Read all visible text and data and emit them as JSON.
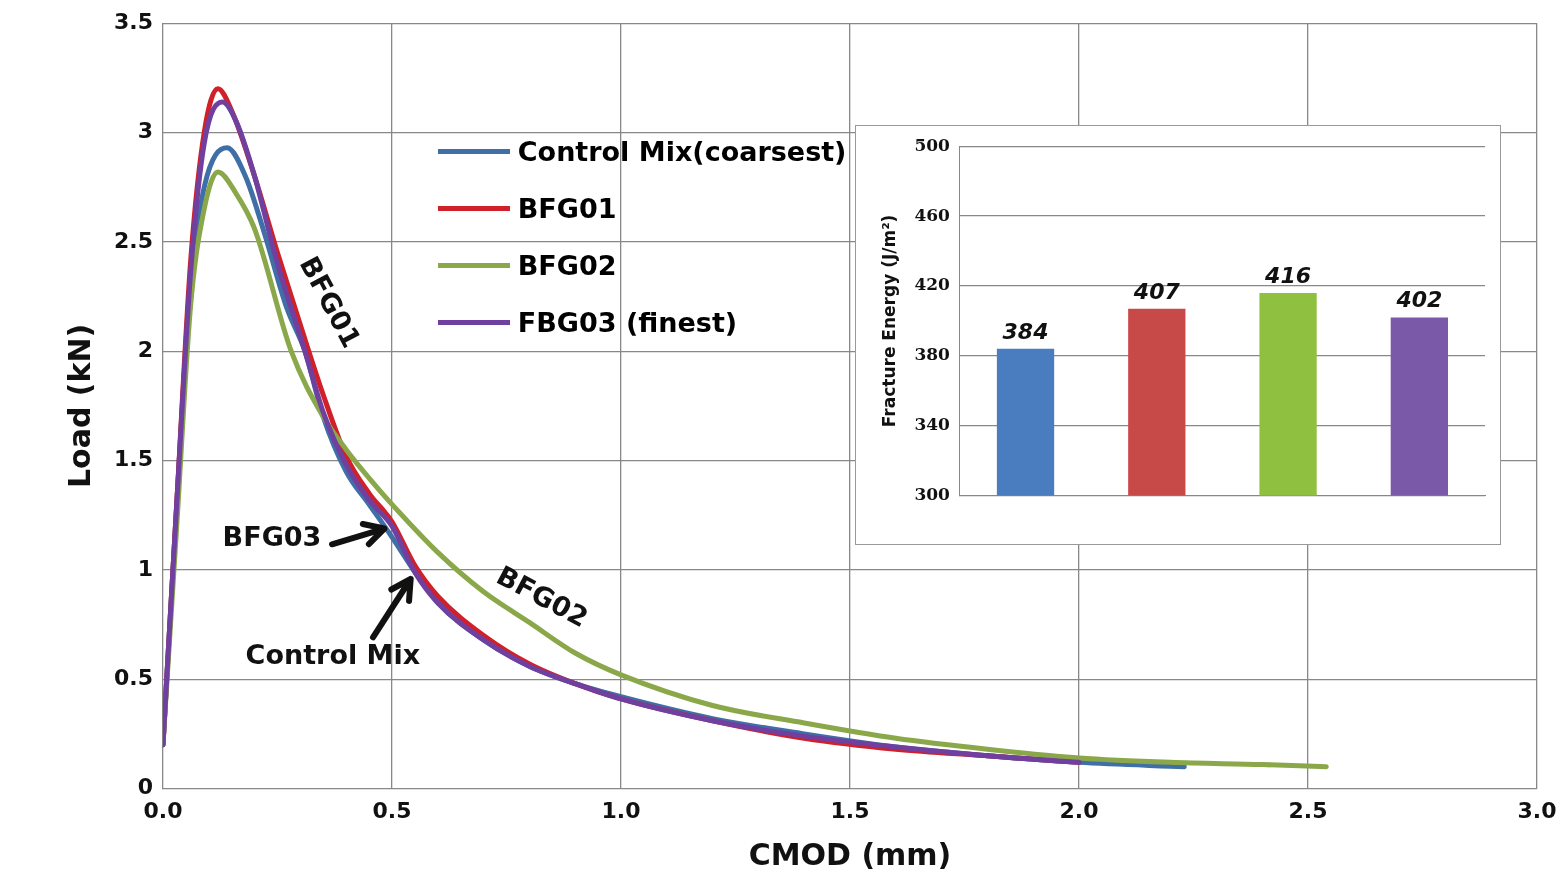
{
  "chart_data": [
    {
      "type": "line",
      "xlabel": "CMOD (mm)",
      "ylabel": "Load (kN)",
      "xlim": [
        0,
        3
      ],
      "xticks": [
        {
          "value": 0,
          "label": "0.0"
        },
        {
          "value": 0.5,
          "label": "0.5"
        },
        {
          "value": 1,
          "label": "1.0"
        },
        {
          "value": 1.5,
          "label": "1.5"
        },
        {
          "value": 2,
          "label": "2.0"
        },
        {
          "value": 2.5,
          "label": "2.5"
        },
        {
          "value": 3,
          "label": "3.0"
        }
      ],
      "ylim": [
        0,
        3.5
      ],
      "yticks": [
        0,
        0.5,
        1,
        1.5,
        2,
        2.5,
        3,
        3.5
      ],
      "grid": true,
      "legend": "top",
      "marker": "none",
      "line_style": "solid",
      "series": [
        {
          "name": "Control Mix(coarsest)",
          "color": "#3f6fa6",
          "x": [
            0,
            0.03,
            0.06,
            0.09,
            0.14,
            0.18,
            0.22,
            0.27,
            0.31,
            0.35,
            0.4,
            0.45,
            0.5,
            0.55,
            0.6,
            0.7,
            0.8,
            0.9,
            1.0,
            1.2,
            1.4,
            1.6,
            1.8,
            2.0,
            2.23
          ],
          "values": [
            0.2,
            1.3,
            2.3,
            2.75,
            2.93,
            2.8,
            2.55,
            2.2,
            2.0,
            1.7,
            1.45,
            1.3,
            1.15,
            0.99,
            0.85,
            0.68,
            0.56,
            0.48,
            0.42,
            0.32,
            0.25,
            0.19,
            0.15,
            0.12,
            0.1
          ]
        },
        {
          "name": "BFG01",
          "color": "#d0202a",
          "x": [
            0,
            0.03,
            0.06,
            0.09,
            0.12,
            0.15,
            0.2,
            0.25,
            0.3,
            0.35,
            0.4,
            0.45,
            0.5,
            0.55,
            0.6,
            0.7,
            0.8,
            0.9,
            1.0,
            1.2,
            1.4,
            1.6,
            1.8,
            2.0
          ],
          "values": [
            0.2,
            1.3,
            2.4,
            3.0,
            3.2,
            3.1,
            2.8,
            2.45,
            2.12,
            1.8,
            1.52,
            1.35,
            1.22,
            1.02,
            0.88,
            0.7,
            0.57,
            0.48,
            0.41,
            0.31,
            0.23,
            0.18,
            0.15,
            0.12
          ]
        },
        {
          "name": "BFG02",
          "color": "#8aa84a",
          "x": [
            0,
            0.03,
            0.06,
            0.09,
            0.12,
            0.16,
            0.2,
            0.28,
            0.35,
            0.4,
            0.45,
            0.5,
            0.6,
            0.7,
            0.8,
            0.9,
            1.0,
            1.2,
            1.4,
            1.6,
            1.8,
            2.0,
            2.2,
            2.4,
            2.54
          ],
          "values": [
            0.2,
            1.2,
            2.2,
            2.65,
            2.82,
            2.72,
            2.56,
            2.0,
            1.7,
            1.55,
            1.42,
            1.3,
            1.08,
            0.9,
            0.76,
            0.62,
            0.52,
            0.38,
            0.3,
            0.23,
            0.18,
            0.14,
            0.12,
            0.11,
            0.1
          ]
        },
        {
          "name": "FBG03 (finest)",
          "color": "#7040a0",
          "x": [
            0,
            0.03,
            0.06,
            0.09,
            0.13,
            0.16,
            0.2,
            0.25,
            0.31,
            0.35,
            0.4,
            0.45,
            0.5,
            0.55,
            0.6,
            0.7,
            0.8,
            0.9,
            1.0,
            1.2,
            1.4,
            1.6,
            1.8,
            2.0
          ],
          "values": [
            0.2,
            1.3,
            2.35,
            2.95,
            3.14,
            3.05,
            2.8,
            2.4,
            2.0,
            1.72,
            1.48,
            1.32,
            1.2,
            0.99,
            0.85,
            0.68,
            0.56,
            0.48,
            0.41,
            0.31,
            0.24,
            0.19,
            0.15,
            0.12
          ]
        }
      ],
      "annotations": [
        {
          "text": "BFG01",
          "x": 0.3,
          "y": 2.12
        },
        {
          "text": "BFG03",
          "x": 0.5,
          "y": 1.2
        },
        {
          "text": "Control Mix",
          "x": 0.55,
          "y": 0.99
        },
        {
          "text": "BFG02",
          "x": 0.8,
          "y": 0.76
        }
      ]
    },
    {
      "type": "bar",
      "ylabel": "Fracture Energy (J/m²)",
      "categories": [
        null,
        null,
        null,
        null
      ],
      "values": [
        384,
        407,
        416,
        402
      ],
      "colors": [
        "#4a7cc0",
        "#c84a48",
        "#8fc040",
        "#7a5aa8"
      ],
      "ylim": [
        300,
        500
      ],
      "yticks": [
        300,
        340,
        380,
        420,
        460,
        500
      ],
      "grid": "y",
      "data_labels": true
    }
  ]
}
